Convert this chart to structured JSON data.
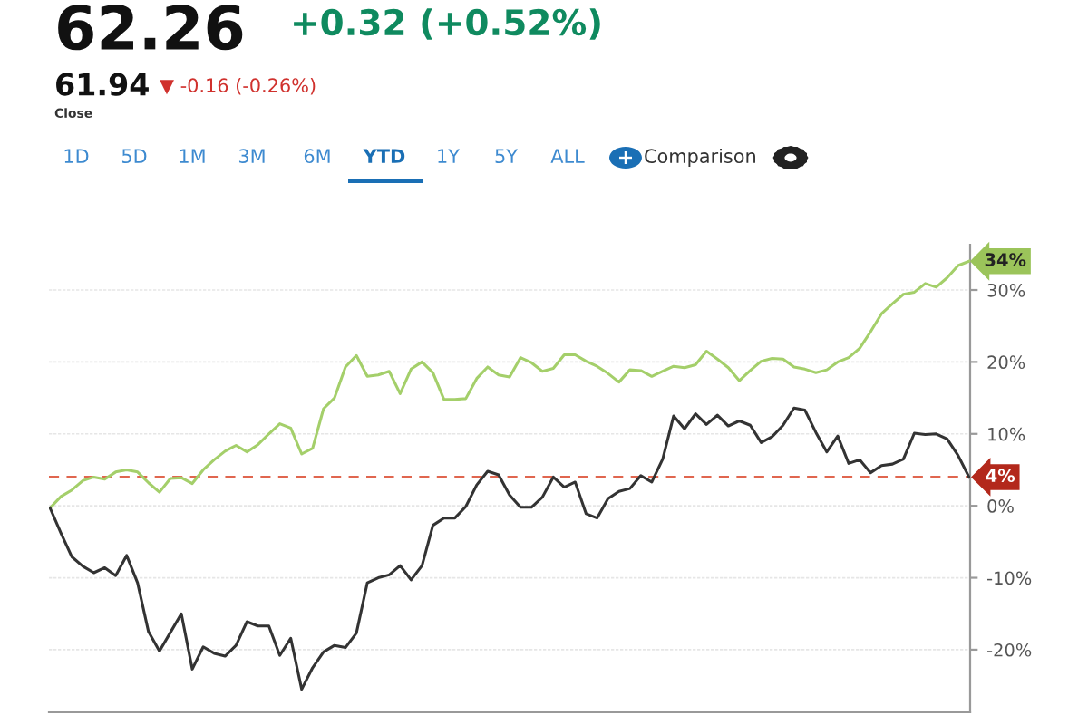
{
  "chart_data": {
    "type": "line",
    "annotations": [
      "62.26",
      "+0.32 (+0.52%)",
      "61.94",
      "▼ -0.16 (-0.26%)",
      "Close",
      "1D",
      "5D",
      "1M",
      "3M",
      "6M",
      "YTD",
      "1Y",
      "5Y",
      "ALL",
      "Comparison",
      "34%"
    ],
    "categories": [
      null,
      null,
      null,
      null,
      null,
      null,
      null,
      null,
      null,
      null,
      null,
      null,
      null,
      null,
      null,
      null,
      null,
      null,
      null,
      null,
      null,
      null,
      null,
      null,
      null,
      null,
      null,
      null,
      null,
      null,
      null,
      null,
      null,
      null,
      null,
      null,
      null,
      null,
      null,
      null,
      null,
      null,
      null,
      null,
      null,
      null,
      null,
      null,
      null,
      null,
      null,
      null,
      null,
      null,
      null,
      null,
      null,
      null,
      null,
      null,
      null,
      null,
      null,
      null,
      null,
      null,
      null,
      null,
      null,
      null,
      null,
      null,
      null,
      null,
      null,
      null,
      null,
      null,
      null,
      null,
      null,
      null,
      null,
      null,
      null
    ],
    "series": [
      {
        "color": "#a4cf6a",
        "values": [
          -0.3,
          1.3,
          2.2,
          3.5,
          4.0,
          3.7,
          4.7,
          5.0,
          4.7,
          3.2,
          1.9,
          3.8,
          3.9,
          3.1,
          5.0,
          6.4,
          7.6,
          8.4,
          7.5,
          8.5,
          10.0,
          11.4,
          10.8,
          7.2,
          8.0,
          13.5,
          15.0,
          19.3,
          20.9,
          18.0,
          18.2,
          18.7,
          15.6,
          19.0,
          20.0,
          18.5,
          14.8,
          14.8,
          14.9,
          17.7,
          19.3,
          18.2,
          17.9,
          20.6,
          19.9,
          18.7,
          19.1,
          21.0,
          21.0,
          20.1,
          19.4,
          18.4,
          17.2,
          18.9,
          18.8,
          18.0,
          18.7,
          19.4,
          19.2,
          19.6,
          21.5,
          20.4,
          19.2,
          17.4,
          18.8,
          20.1,
          20.5,
          20.4,
          19.3,
          19.0,
          18.5,
          18.9,
          20.0,
          20.6,
          21.9,
          24.2,
          26.7,
          28.1,
          29.4,
          29.7,
          30.9,
          30.4,
          31.7,
          33.4,
          34
        ]
      },
      {
        "color": "#333333",
        "values": [
          -0.3,
          -3.8,
          -7.1,
          -8.4,
          -9.3,
          -8.6,
          -9.7,
          -6.9,
          -10.7,
          -17.5,
          -20.2,
          -17.6,
          -15.0,
          -22.7,
          -19.6,
          -20.5,
          -20.9,
          -19.4,
          -16.1,
          -16.7,
          -16.7,
          -20.8,
          -18.4,
          -25.5,
          -22.5,
          -20.3,
          -19.4,
          -19.7,
          -17.7,
          -10.7,
          -10.0,
          -9.6,
          -8.3,
          -10.3,
          -8.3,
          -2.7,
          -1.7,
          -1.7,
          -0.1,
          2.9,
          4.8,
          4.3,
          1.5,
          -0.2,
          -0.2,
          1.2,
          4.0,
          2.6,
          3.3,
          -1.1,
          -1.7,
          1.0,
          2.0,
          2.4,
          4.2,
          3.3,
          6.5,
          12.5,
          10.7,
          12.8,
          11.3,
          12.6,
          11.1,
          11.8,
          11.2,
          8.8,
          9.6,
          11.2,
          13.6,
          13.3,
          10.2,
          7.5,
          9.7,
          5.9,
          6.4,
          4.6,
          5.6,
          5.8,
          6.5,
          10.1,
          9.9,
          10.0,
          9.3,
          7.0,
          4.0
        ]
      }
    ],
    "ylim": [
      -28.7,
      36.3
    ],
    "yticks": [
      {
        "value": -20,
        "label": "-20%"
      },
      {
        "value": -10,
        "label": "-10%"
      },
      {
        "value": 0,
        "label": "0%"
      },
      {
        "value": 10,
        "label": "10%"
      },
      {
        "value": 20,
        "label": "20%"
      },
      {
        "value": 30,
        "label": "30%"
      }
    ],
    "ref_lines": [
      {
        "axis": "y",
        "value": 4,
        "label": "4%",
        "color": "#e0664f",
        "line_style": "dashed"
      }
    ],
    "grid": "y",
    "tick_labels": "y"
  }
}
